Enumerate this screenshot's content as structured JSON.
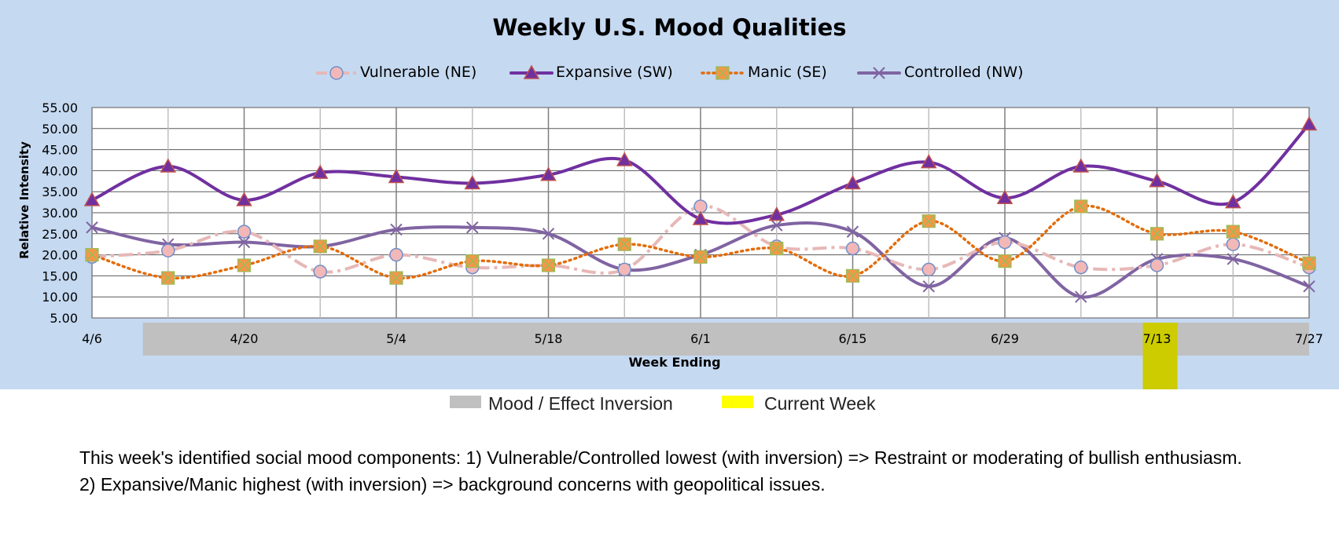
{
  "chart_data": {
    "type": "line",
    "title": "Weekly U.S. Mood Qualities",
    "xlabel": "Week Ending",
    "ylabel": "Relative Intensity",
    "ylim": [
      5,
      55
    ],
    "y_ticks": [
      "5.00",
      "10.00",
      "15.00",
      "20.00",
      "25.00",
      "30.00",
      "35.00",
      "40.00",
      "45.00",
      "50.00",
      "55.00"
    ],
    "x_tick_labels": [
      "4/6",
      "4/20",
      "5/4",
      "5/18",
      "6/1",
      "6/15",
      "6/29",
      "7/13",
      "7/27"
    ],
    "x_tick_label_indices": [
      0,
      2,
      4,
      6,
      8,
      10,
      12,
      14,
      16
    ],
    "grid": true,
    "legend_position": "top",
    "num_weeks": 17,
    "series": [
      {
        "name": "Vulnerable (NE)",
        "color": "#e6b8b7",
        "marker": "circle",
        "marker_fill": "#f2b8b8",
        "marker_edge": "#6f8fc9",
        "dash": "dashdot",
        "values": [
          19.5,
          21,
          25.5,
          16,
          20,
          17,
          17.5,
          16.5,
          31.5,
          22,
          21.5,
          16.5,
          23,
          17,
          17.5,
          22.5,
          17
        ]
      },
      {
        "name": "Expansive (SW)",
        "color": "#7030a0",
        "marker": "triangle",
        "marker_fill": "#7030a0",
        "marker_edge": "#c0504d",
        "dash": "solid",
        "values": [
          33,
          41,
          33,
          39.5,
          38.5,
          37,
          39,
          42.5,
          28.5,
          29.5,
          37,
          42,
          33.5,
          41,
          37.5,
          32.5,
          51
        ]
      },
      {
        "name": "Manic (SE)",
        "color": "#e36c09",
        "marker": "x-square",
        "marker_fill": "#f79646",
        "marker_edge": "#9bbb59",
        "dash": "dotted",
        "values": [
          20,
          14.5,
          17.5,
          22,
          14.5,
          18.5,
          17.5,
          22.5,
          19.5,
          21.5,
          15,
          28,
          18.5,
          31.5,
          25,
          25.5,
          18
        ]
      },
      {
        "name": "Controlled (NW)",
        "color": "#8064a2",
        "marker": "x",
        "marker_fill": "none",
        "marker_edge": "#8064a2",
        "dash": "solid",
        "values": [
          26.5,
          22.5,
          23,
          22,
          26,
          26.5,
          25,
          16.5,
          20,
          27,
          25.5,
          12.5,
          24,
          10,
          19,
          19,
          12.5
        ]
      }
    ],
    "mood_effect_inversion_weeks": [
      1,
      2,
      3,
      4,
      5,
      6,
      7,
      8,
      9,
      10,
      11,
      12,
      13,
      14,
      15,
      16
    ],
    "current_week_index": 14
  },
  "bottom_legend": {
    "inversion_label": "Mood / Effect Inversion",
    "inversion_color": "#c0c0c0",
    "current_label": "Current Week",
    "current_color": "#ffff00"
  },
  "note": {
    "line1": "This week's identified social mood components: 1) Vulnerable/Controlled lowest (with inversion) => Restraint or moderating of bullish enthusiasm.",
    "line2": "2) Expansive/Manic highest (with inversion) => background concerns with geopolitical issues."
  }
}
